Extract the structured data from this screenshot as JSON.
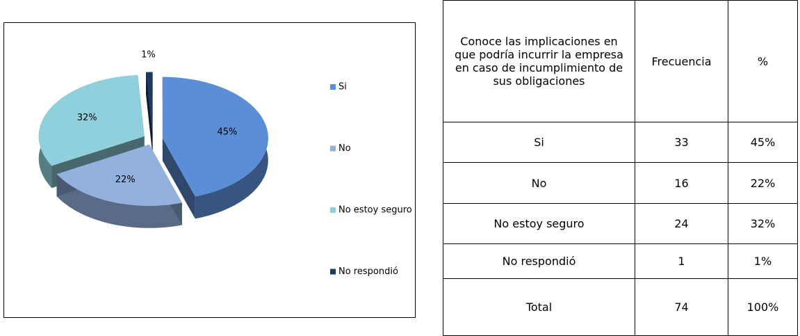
{
  "chart_data": {
    "type": "pie",
    "categories": [
      "Si",
      "No",
      "No estoy seguro",
      "No respondió"
    ],
    "values": [
      45,
      22,
      32,
      1
    ],
    "value_labels": [
      "45%",
      "22%",
      "32%",
      "1%"
    ],
    "colors": [
      "#5b8ed6",
      "#93b1dd",
      "#8fd0dc",
      "#1f3a5f"
    ],
    "legend": "right"
  },
  "table": {
    "header": [
      "Conoce las implicaciones en que podría incurrir la empresa en caso de incumplimiento de sus obligaciones",
      "Frecuencia",
      "%"
    ],
    "rows": [
      [
        "Si",
        "33",
        "45%"
      ],
      [
        "No",
        "16",
        "22%"
      ],
      [
        "No estoy seguro",
        "24",
        "32%"
      ],
      [
        "No respondió",
        "1",
        "1%"
      ],
      [
        "Total",
        "74",
        "100%"
      ]
    ]
  }
}
